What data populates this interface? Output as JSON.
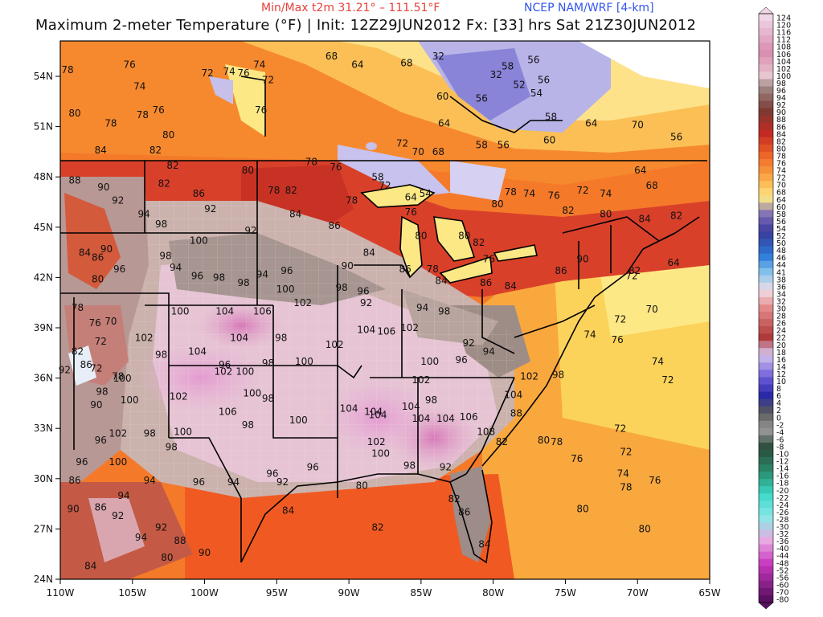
{
  "header": {
    "minmax": "Min/Max t2m 31.21° – 111.51°F",
    "model": "NCEP NAM/WRF [4-km]",
    "title": "Maximum 2-meter Temperature (°F) | Init: 12Z29JUN2012 Fx: [33] hrs Sat 21Z30JUN2012"
  },
  "axes": {
    "lon_labels": [
      "110W",
      "105W",
      "100W",
      "95W",
      "90W",
      "85W",
      "80W",
      "75W",
      "70W",
      "65W"
    ],
    "lat_labels": [
      "54N",
      "51N",
      "48N",
      "45N",
      "42N",
      "39N",
      "36N",
      "33N",
      "30N",
      "27N",
      "24N"
    ]
  },
  "colorbar": {
    "labels": [
      "124",
      "120",
      "116",
      "112",
      "108",
      "106",
      "104",
      "102",
      "100",
      "98",
      "96",
      "94",
      "92",
      "90",
      "88",
      "86",
      "84",
      "82",
      "80",
      "78",
      "76",
      "74",
      "72",
      "70",
      "68",
      "64",
      "60",
      "58",
      "56",
      "54",
      "52",
      "50",
      "48",
      "46",
      "44",
      "41",
      "38",
      "36",
      "34",
      "32",
      "30",
      "28",
      "26",
      "24",
      "22",
      "20",
      "18",
      "16",
      "14",
      "12",
      "10",
      "8",
      "6",
      "4",
      "2",
      "0",
      "-2",
      "-4",
      "-6",
      "-8",
      "-10",
      "-12",
      "-14",
      "-16",
      "-18",
      "-20",
      "-22",
      "-24",
      "-26",
      "-28",
      "-30",
      "-32",
      "-36",
      "-40",
      "-44",
      "-48",
      "-52",
      "-56",
      "-60",
      "-70",
      "-80"
    ]
  },
  "map_labels": [
    {
      "t": "78",
      "lon": -109.5,
      "lat": 54.2
    },
    {
      "t": "76",
      "lon": -105.2,
      "lat": 54.5
    },
    {
      "t": "74",
      "lon": -104.5,
      "lat": 53.2
    },
    {
      "t": "72",
      "lon": -99.8,
      "lat": 54.0
    },
    {
      "t": "74",
      "lon": -98.3,
      "lat": 54.1
    },
    {
      "t": "76",
      "lon": -97.3,
      "lat": 54.0
    },
    {
      "t": "74",
      "lon": -96.2,
      "lat": 54.5
    },
    {
      "t": "72",
      "lon": -95.6,
      "lat": 53.6
    },
    {
      "t": "68",
      "lon": -91.2,
      "lat": 55.0
    },
    {
      "t": "64",
      "lon": -89.4,
      "lat": 54.5
    },
    {
      "t": "68",
      "lon": -86.0,
      "lat": 54.6
    },
    {
      "t": "32",
      "lon": -83.8,
      "lat": 55.0
    },
    {
      "t": "56",
      "lon": -77.2,
      "lat": 54.8
    },
    {
      "t": "58",
      "lon": -79.0,
      "lat": 54.4
    },
    {
      "t": "32",
      "lon": -79.8,
      "lat": 53.9
    },
    {
      "t": "52",
      "lon": -78.2,
      "lat": 53.3
    },
    {
      "t": "56",
      "lon": -76.5,
      "lat": 53.6
    },
    {
      "t": "54",
      "lon": -77.0,
      "lat": 52.8
    },
    {
      "t": "56",
      "lon": -80.8,
      "lat": 52.5
    },
    {
      "t": "60",
      "lon": -83.5,
      "lat": 52.6
    },
    {
      "t": "64",
      "lon": -83.4,
      "lat": 51.0
    },
    {
      "t": "58",
      "lon": -76.0,
      "lat": 51.4
    },
    {
      "t": "64",
      "lon": -73.2,
      "lat": 51.0
    },
    {
      "t": "70",
      "lon": -70.0,
      "lat": 50.9
    },
    {
      "t": "56",
      "lon": -67.3,
      "lat": 50.2
    },
    {
      "t": "80",
      "lon": -109.0,
      "lat": 51.6
    },
    {
      "t": "78",
      "lon": -106.5,
      "lat": 51.0
    },
    {
      "t": "76",
      "lon": -103.2,
      "lat": 51.8
    },
    {
      "t": "78",
      "lon": -104.3,
      "lat": 51.5
    },
    {
      "t": "80",
      "lon": -102.5,
      "lat": 50.3
    },
    {
      "t": "76",
      "lon": -96.1,
      "lat": 51.8
    },
    {
      "t": "72",
      "lon": -86.3,
      "lat": 49.8
    },
    {
      "t": "70",
      "lon": -85.2,
      "lat": 49.3
    },
    {
      "t": "68",
      "lon": -83.8,
      "lat": 49.3
    },
    {
      "t": "58",
      "lon": -80.8,
      "lat": 49.7
    },
    {
      "t": "56",
      "lon": -79.3,
      "lat": 49.7
    },
    {
      "t": "60",
      "lon": -76.1,
      "lat": 50.0
    },
    {
      "t": "84",
      "lon": -107.2,
      "lat": 49.4
    },
    {
      "t": "82",
      "lon": -103.4,
      "lat": 49.4
    },
    {
      "t": "82",
      "lon": -102.2,
      "lat": 48.5
    },
    {
      "t": "82",
      "lon": -102.8,
      "lat": 47.4
    },
    {
      "t": "86",
      "lon": -100.4,
      "lat": 46.8
    },
    {
      "t": "80",
      "lon": -97.0,
      "lat": 48.2
    },
    {
      "t": "78",
      "lon": -95.2,
      "lat": 47.0
    },
    {
      "t": "82",
      "lon": -94.0,
      "lat": 47.0
    },
    {
      "t": "78",
      "lon": -92.6,
      "lat": 48.7
    },
    {
      "t": "76",
      "lon": -90.9,
      "lat": 48.4
    },
    {
      "t": "78",
      "lon": -89.8,
      "lat": 46.4
    },
    {
      "t": "72",
      "lon": -87.5,
      "lat": 47.3
    },
    {
      "t": "64",
      "lon": -85.7,
      "lat": 46.6
    },
    {
      "t": "58",
      "lon": -88.0,
      "lat": 47.8
    },
    {
      "t": "54",
      "lon": -84.7,
      "lat": 46.8
    },
    {
      "t": "76",
      "lon": -85.7,
      "lat": 45.7
    },
    {
      "t": "78",
      "lon": -78.8,
      "lat": 46.9
    },
    {
      "t": "74",
      "lon": -77.5,
      "lat": 46.8
    },
    {
      "t": "80",
      "lon": -79.7,
      "lat": 46.2
    },
    {
      "t": "76",
      "lon": -75.8,
      "lat": 46.7
    },
    {
      "t": "72",
      "lon": -73.8,
      "lat": 47.0
    },
    {
      "t": "74",
      "lon": -72.2,
      "lat": 46.8
    },
    {
      "t": "64",
      "lon": -69.8,
      "lat": 48.2
    },
    {
      "t": "68",
      "lon": -69.0,
      "lat": 47.3
    },
    {
      "t": "82",
      "lon": -74.8,
      "lat": 45.8
    },
    {
      "t": "80",
      "lon": -72.2,
      "lat": 45.6
    },
    {
      "t": "84",
      "lon": -69.5,
      "lat": 45.3
    },
    {
      "t": "82",
      "lon": -67.3,
      "lat": 45.5
    },
    {
      "t": "88",
      "lon": -109.0,
      "lat": 47.6
    },
    {
      "t": "90",
      "lon": -107.0,
      "lat": 47.2
    },
    {
      "t": "92",
      "lon": -106.0,
      "lat": 46.4
    },
    {
      "t": "94",
      "lon": -104.2,
      "lat": 45.6
    },
    {
      "t": "98",
      "lon": -103.0,
      "lat": 45.0
    },
    {
      "t": "92",
      "lon": -99.6,
      "lat": 45.9
    },
    {
      "t": "92",
      "lon": -96.8,
      "lat": 44.6
    },
    {
      "t": "84",
      "lon": -93.7,
      "lat": 45.6
    },
    {
      "t": "86",
      "lon": -91.0,
      "lat": 44.9
    },
    {
      "t": "84",
      "lon": -88.6,
      "lat": 43.3
    },
    {
      "t": "80",
      "lon": -85.0,
      "lat": 44.3
    },
    {
      "t": "86",
      "lon": -86.1,
      "lat": 42.3
    },
    {
      "t": "78",
      "lon": -84.2,
      "lat": 42.3
    },
    {
      "t": "80",
      "lon": -82.0,
      "lat": 44.3
    },
    {
      "t": "76",
      "lon": -80.3,
      "lat": 42.9
    },
    {
      "t": "82",
      "lon": -81.0,
      "lat": 43.9
    },
    {
      "t": "86",
      "lon": -75.3,
      "lat": 42.2
    },
    {
      "t": "90",
      "lon": -73.8,
      "lat": 42.9
    },
    {
      "t": "82",
      "lon": -70.2,
      "lat": 42.2
    },
    {
      "t": "72",
      "lon": -70.4,
      "lat": 41.9
    },
    {
      "t": "64",
      "lon": -67.5,
      "lat": 42.7
    },
    {
      "t": "84",
      "lon": -108.3,
      "lat": 43.3
    },
    {
      "t": "86",
      "lon": -107.4,
      "lat": 43.0
    },
    {
      "t": "90",
      "lon": -106.8,
      "lat": 43.5
    },
    {
      "t": "96",
      "lon": -105.9,
      "lat": 42.3
    },
    {
      "t": "80",
      "lon": -107.4,
      "lat": 41.7
    },
    {
      "t": "98",
      "lon": -102.7,
      "lat": 43.1
    },
    {
      "t": "94",
      "lon": -102.0,
      "lat": 42.4
    },
    {
      "t": "96",
      "lon": -100.5,
      "lat": 41.9
    },
    {
      "t": "98",
      "lon": -99.0,
      "lat": 41.8
    },
    {
      "t": "98",
      "lon": -97.3,
      "lat": 41.5
    },
    {
      "t": "94",
      "lon": -96.0,
      "lat": 42.0
    },
    {
      "t": "96",
      "lon": -94.3,
      "lat": 42.2
    },
    {
      "t": "100",
      "lon": -94.4,
      "lat": 41.1
    },
    {
      "t": "100",
      "lon": -100.4,
      "lat": 44.0
    },
    {
      "t": "90",
      "lon": -90.1,
      "lat": 42.5
    },
    {
      "t": "96",
      "lon": -89.0,
      "lat": 41.0
    },
    {
      "t": "98",
      "lon": -90.5,
      "lat": 41.2
    },
    {
      "t": "92",
      "lon": -88.8,
      "lat": 40.3
    },
    {
      "t": "102",
      "lon": -93.2,
      "lat": 40.3
    },
    {
      "t": "84",
      "lon": -83.6,
      "lat": 41.6
    },
    {
      "t": "86",
      "lon": -80.5,
      "lat": 41.5
    },
    {
      "t": "84",
      "lon": -78.8,
      "lat": 41.3
    },
    {
      "t": "94",
      "lon": -84.9,
      "lat": 40.0
    },
    {
      "t": "98",
      "lon": -83.4,
      "lat": 39.8
    },
    {
      "t": "78",
      "lon": -108.8,
      "lat": 40.0
    },
    {
      "t": "76",
      "lon": -107.6,
      "lat": 39.1
    },
    {
      "t": "70",
      "lon": -106.5,
      "lat": 39.2
    },
    {
      "t": "72",
      "lon": -107.2,
      "lat": 38.0
    },
    {
      "t": "82",
      "lon": -108.8,
      "lat": 37.4
    },
    {
      "t": "86",
      "lon": -108.2,
      "lat": 36.6
    },
    {
      "t": "92",
      "lon": -109.7,
      "lat": 36.3
    },
    {
      "t": "100",
      "lon": -101.7,
      "lat": 39.8
    },
    {
      "t": "104",
      "lon": -98.6,
      "lat": 39.8
    },
    {
      "t": "106",
      "lon": -96.0,
      "lat": 39.8
    },
    {
      "t": "104",
      "lon": -97.6,
      "lat": 38.2
    },
    {
      "t": "102",
      "lon": -104.2,
      "lat": 38.2
    },
    {
      "t": "98",
      "lon": -103.0,
      "lat": 37.2
    },
    {
      "t": "104",
      "lon": -100.5,
      "lat": 37.4
    },
    {
      "t": "98",
      "lon": -94.7,
      "lat": 38.2
    },
    {
      "t": "102",
      "lon": -91.0,
      "lat": 37.8
    },
    {
      "t": "104",
      "lon": -88.8,
      "lat": 38.7
    },
    {
      "t": "106",
      "lon": -87.4,
      "lat": 38.6
    },
    {
      "t": "102",
      "lon": -85.8,
      "lat": 38.8
    },
    {
      "t": "100",
      "lon": -84.4,
      "lat": 36.8
    },
    {
      "t": "96",
      "lon": -82.2,
      "lat": 36.9
    },
    {
      "t": "94",
      "lon": -80.3,
      "lat": 37.4
    },
    {
      "t": "92",
      "lon": -81.7,
      "lat": 37.9
    },
    {
      "t": "98",
      "lon": -95.6,
      "lat": 36.7
    },
    {
      "t": "100",
      "lon": -93.1,
      "lat": 36.8
    },
    {
      "t": "96",
      "lon": -98.6,
      "lat": 36.6
    },
    {
      "t": "102",
      "lon": -98.7,
      "lat": 36.2
    },
    {
      "t": "100",
      "lon": -97.2,
      "lat": 36.2
    },
    {
      "t": "100",
      "lon": -105.7,
      "lat": 35.8
    },
    {
      "t": "78",
      "lon": -106.0,
      "lat": 35.9
    },
    {
      "t": "72",
      "lon": -107.5,
      "lat": 36.4
    },
    {
      "t": "98",
      "lon": -107.1,
      "lat": 35.0
    },
    {
      "t": "90",
      "lon": -107.5,
      "lat": 34.2
    },
    {
      "t": "100",
      "lon": -105.2,
      "lat": 34.5
    },
    {
      "t": "102",
      "lon": -101.8,
      "lat": 34.7
    },
    {
      "t": "100",
      "lon": -96.7,
      "lat": 34.9
    },
    {
      "t": "98",
      "lon": -95.6,
      "lat": 34.6
    },
    {
      "t": "106",
      "lon": -98.4,
      "lat": 33.8
    },
    {
      "t": "98",
      "lon": -97.0,
      "lat": 33.0
    },
    {
      "t": "100",
      "lon": -93.5,
      "lat": 33.3
    },
    {
      "t": "104",
      "lon": -90.0,
      "lat": 34.0
    },
    {
      "t": "104",
      "lon": -88.0,
      "lat": 33.6
    },
    {
      "t": "104",
      "lon": -85.7,
      "lat": 34.1
    },
    {
      "t": "102",
      "lon": -85.0,
      "lat": 35.7
    },
    {
      "t": "98",
      "lon": -84.3,
      "lat": 34.5
    },
    {
      "t": "104",
      "lon": -83.3,
      "lat": 33.4
    },
    {
      "t": "106",
      "lon": -81.7,
      "lat": 33.5
    },
    {
      "t": "104",
      "lon": -78.6,
      "lat": 34.8
    },
    {
      "t": "102",
      "lon": -77.5,
      "lat": 35.9
    },
    {
      "t": "98",
      "lon": -75.5,
      "lat": 36.0
    },
    {
      "t": "104",
      "lon": -85.0,
      "lat": 33.4
    },
    {
      "t": "102",
      "lon": -88.1,
      "lat": 32.0
    },
    {
      "t": "100",
      "lon": -87.8,
      "lat": 31.3
    },
    {
      "t": "98",
      "lon": -85.8,
      "lat": 30.6
    },
    {
      "t": "92",
      "lon": -83.3,
      "lat": 30.5
    },
    {
      "t": "104",
      "lon": -88.3,
      "lat": 33.8
    },
    {
      "t": "108",
      "lon": -80.5,
      "lat": 32.6
    },
    {
      "t": "82",
      "lon": -79.4,
      "lat": 32.0
    },
    {
      "t": "102",
      "lon": -106.0,
      "lat": 32.5
    },
    {
      "t": "98",
      "lon": -103.8,
      "lat": 32.5
    },
    {
      "t": "100",
      "lon": -101.5,
      "lat": 32.6
    },
    {
      "t": "98",
      "lon": -102.3,
      "lat": 31.7
    },
    {
      "t": "96",
      "lon": -108.5,
      "lat": 30.8
    },
    {
      "t": "100",
      "lon": -106.0,
      "lat": 30.8
    },
    {
      "t": "96",
      "lon": -107.2,
      "lat": 32.1
    },
    {
      "t": "94",
      "lon": -103.8,
      "lat": 29.7
    },
    {
      "t": "96",
      "lon": -100.4,
      "lat": 29.6
    },
    {
      "t": "94",
      "lon": -98.0,
      "lat": 29.6
    },
    {
      "t": "96",
      "lon": -95.3,
      "lat": 30.1
    },
    {
      "t": "96",
      "lon": -92.5,
      "lat": 30.5
    },
    {
      "t": "92",
      "lon": -94.6,
      "lat": 29.6
    },
    {
      "t": "80",
      "lon": -89.1,
      "lat": 29.4
    },
    {
      "t": "82",
      "lon": -82.7,
      "lat": 28.6
    },
    {
      "t": "86",
      "lon": -82.0,
      "lat": 27.8
    },
    {
      "t": "84",
      "lon": -94.2,
      "lat": 27.9
    },
    {
      "t": "82",
      "lon": -88.0,
      "lat": 26.9
    },
    {
      "t": "84",
      "lon": -80.6,
      "lat": 25.9
    },
    {
      "t": "86",
      "lon": -109.0,
      "lat": 29.7
    },
    {
      "t": "90",
      "lon": -109.1,
      "lat": 28.0
    },
    {
      "t": "86",
      "lon": -107.2,
      "lat": 28.1
    },
    {
      "t": "92",
      "lon": -106.0,
      "lat": 27.6
    },
    {
      "t": "94",
      "lon": -105.6,
      "lat": 28.8
    },
    {
      "t": "92",
      "lon": -103.0,
      "lat": 26.9
    },
    {
      "t": "88",
      "lon": -101.7,
      "lat": 26.1
    },
    {
      "t": "90",
      "lon": -100.0,
      "lat": 25.4
    },
    {
      "t": "84",
      "lon": -107.9,
      "lat": 24.6
    },
    {
      "t": "80",
      "lon": -102.6,
      "lat": 25.1
    },
    {
      "t": "94",
      "lon": -104.4,
      "lat": 26.3
    },
    {
      "t": "80",
      "lon": -76.5,
      "lat": 32.1
    },
    {
      "t": "78",
      "lon": -75.6,
      "lat": 32.0
    },
    {
      "t": "76",
      "lon": -74.2,
      "lat": 31.0
    },
    {
      "t": "72",
      "lon": -71.2,
      "lat": 32.8
    },
    {
      "t": "72",
      "lon": -70.8,
      "lat": 31.4
    },
    {
      "t": "74",
      "lon": -71.0,
      "lat": 30.1
    },
    {
      "t": "78",
      "lon": -70.8,
      "lat": 29.3
    },
    {
      "t": "76",
      "lon": -68.8,
      "lat": 29.7
    },
    {
      "t": "80",
      "lon": -73.8,
      "lat": 28.0
    },
    {
      "t": "80",
      "lon": -69.5,
      "lat": 26.8
    },
    {
      "t": "74",
      "lon": -73.3,
      "lat": 38.4
    },
    {
      "t": "76",
      "lon": -71.4,
      "lat": 38.1
    },
    {
      "t": "72",
      "lon": -71.2,
      "lat": 39.3
    },
    {
      "t": "70",
      "lon": -69.0,
      "lat": 39.9
    },
    {
      "t": "74",
      "lon": -68.6,
      "lat": 36.8
    },
    {
      "t": "72",
      "lon": -67.9,
      "lat": 35.7
    },
    {
      "t": "88",
      "lon": -78.4,
      "lat": 33.7
    }
  ]
}
